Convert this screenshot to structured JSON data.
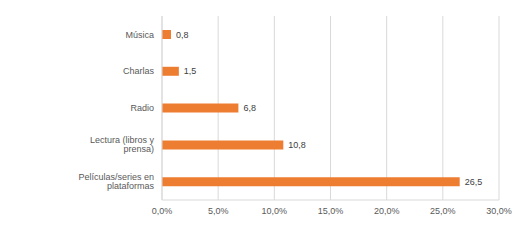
{
  "chart_data": {
    "type": "bar",
    "orientation": "horizontal",
    "categories": [
      "Música",
      "Charlas",
      "Radio",
      "Lectura (libros y prensa)",
      "Películas/series en plataformas"
    ],
    "values": [
      0.8,
      1.5,
      6.8,
      10.8,
      26.5
    ],
    "value_labels": [
      "0,8",
      "1,5",
      "6,8",
      "10,8",
      "26,5"
    ],
    "color": "#ed7d31",
    "xlim": [
      0,
      30
    ],
    "xticks": [
      {
        "value": 0,
        "label": "0,0%"
      },
      {
        "value": 5,
        "label": "5,0%"
      },
      {
        "value": 10,
        "label": "10,0%"
      },
      {
        "value": 15,
        "label": "15,0%"
      },
      {
        "value": 20,
        "label": "20,0%"
      },
      {
        "value": 25,
        "label": "25,0%"
      },
      {
        "value": 30,
        "label": "30,0%"
      }
    ],
    "grid": true,
    "data_labels": true
  }
}
